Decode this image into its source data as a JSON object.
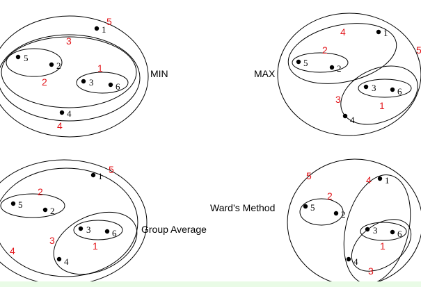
{
  "colors": {
    "line": "#000000",
    "merge_order": "#e3161b",
    "bottom_strip": "#e9fbe6"
  },
  "panels": [
    {
      "label": "MIN",
      "points": [
        "1",
        "2",
        "3",
        "4",
        "5",
        "6"
      ],
      "merge_order": [
        "5",
        "3",
        "1",
        "2",
        "4"
      ]
    },
    {
      "label": "MAX",
      "points": [
        "1",
        "5",
        "2",
        "3",
        "6",
        "4"
      ],
      "merge_order": [
        "4",
        "5",
        "2",
        "3",
        "1"
      ]
    },
    {
      "label": "Group Average",
      "points": [
        "1",
        "5",
        "2",
        "3",
        "6",
        "4"
      ],
      "merge_order": [
        "5",
        "2",
        "3",
        "1",
        "4"
      ]
    },
    {
      "label": "Ward’s Method",
      "points": [
        "1",
        "5",
        "2",
        "3",
        "6",
        "4"
      ],
      "merge_order": [
        "5",
        "2",
        "4",
        "1",
        "3"
      ]
    }
  ]
}
